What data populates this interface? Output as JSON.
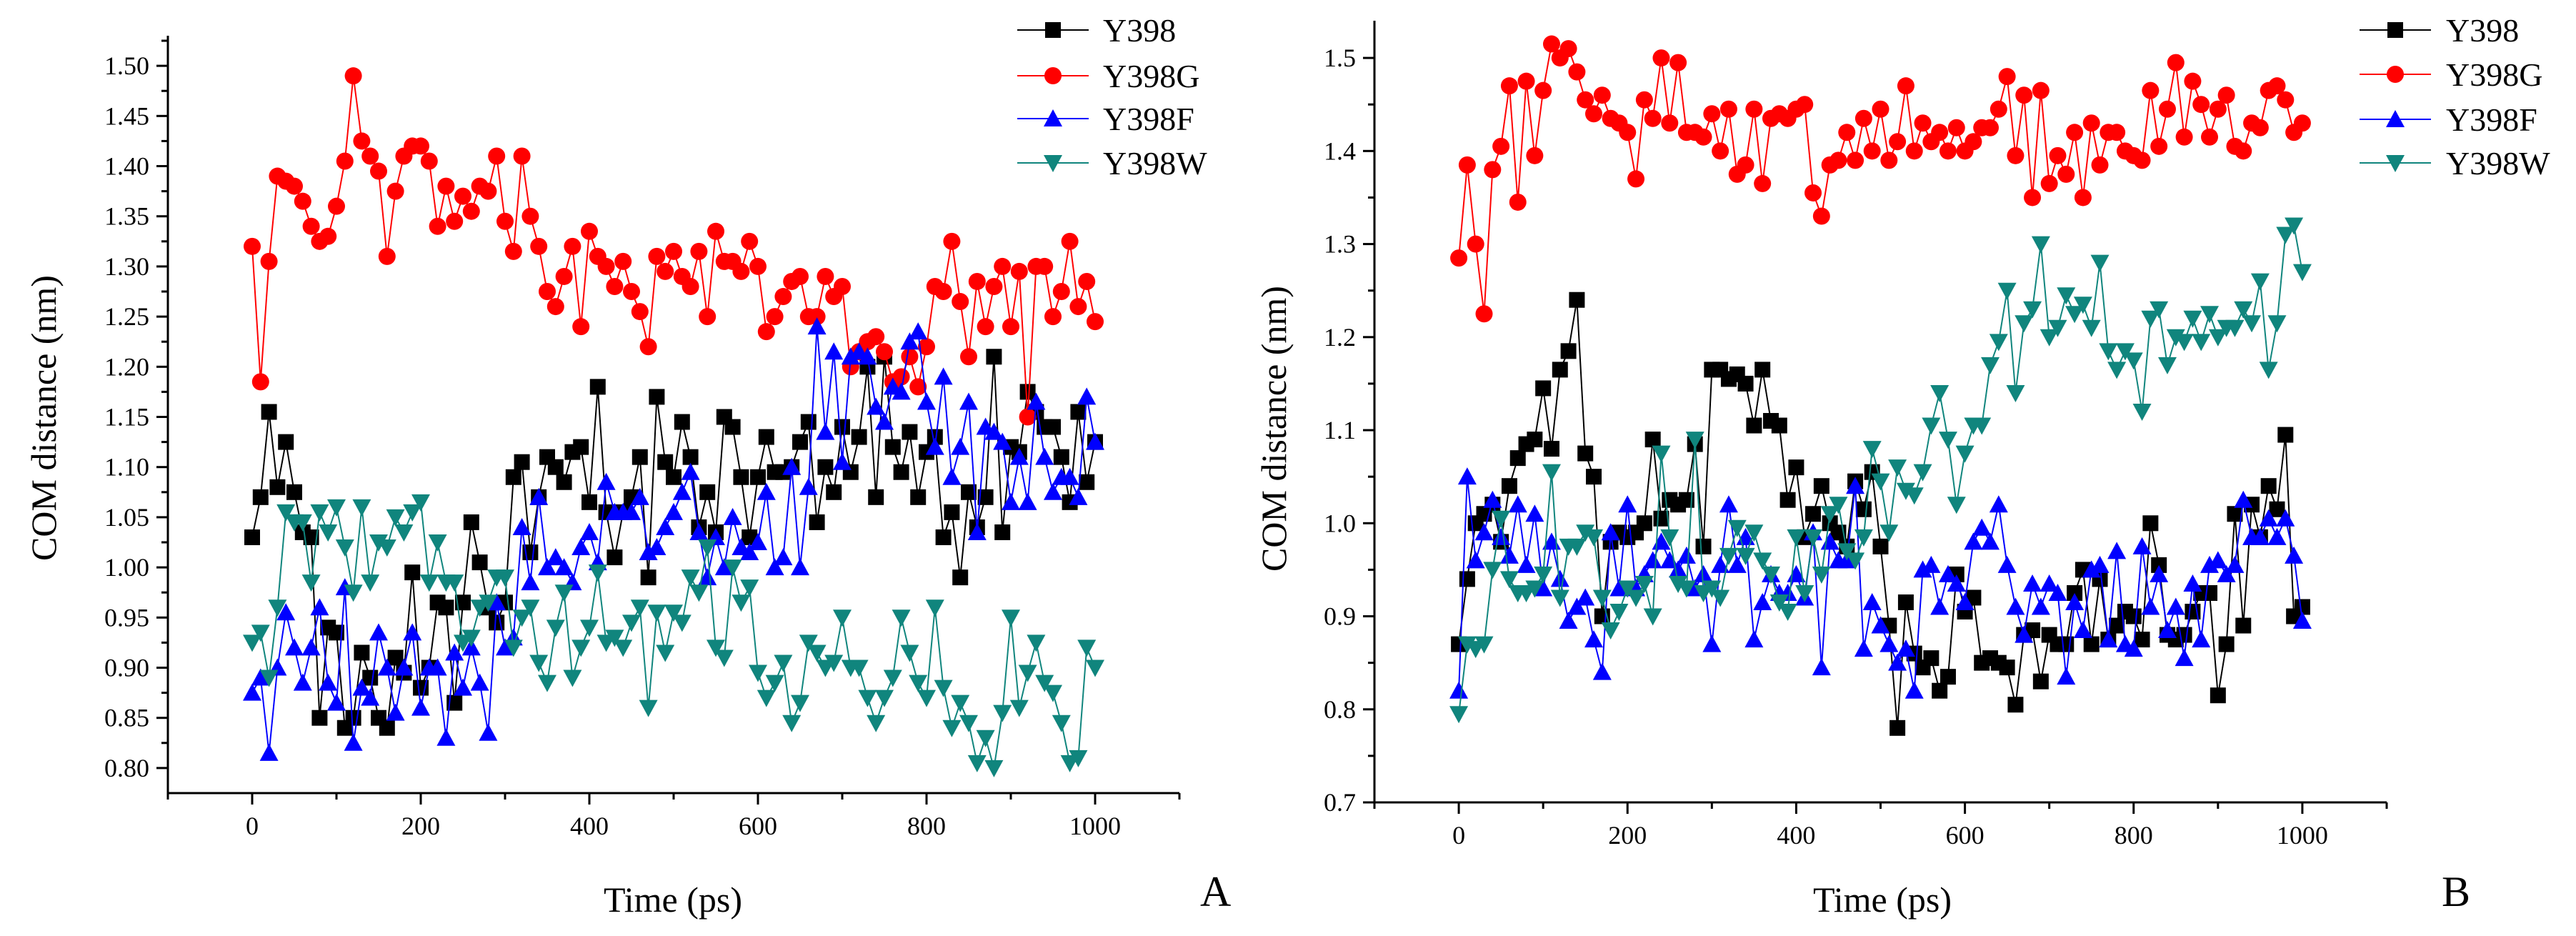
{
  "chart_data": [
    {
      "type": "line",
      "panel_label": "A",
      "xlabel": "Time (ps)",
      "ylabel": "COM distance (nm)",
      "xlim": [
        -100,
        1100
      ],
      "ylim": [
        0.775,
        1.53
      ],
      "xticks": [
        0,
        200,
        400,
        600,
        800,
        1000
      ],
      "yticks": [
        0.8,
        0.85,
        0.9,
        0.95,
        1.0,
        1.05,
        1.1,
        1.15,
        1.2,
        1.25,
        1.3,
        1.35,
        1.4,
        1.45,
        1.5
      ],
      "ytick_decimals": 2,
      "legend_position": "top-right",
      "x_start": 0,
      "x_step": 10,
      "series": [
        {
          "name": "Y398",
          "color": "#000000",
          "marker": "square",
          "values": [
            1.03,
            1.07,
            1.155,
            1.08,
            1.125,
            1.075,
            1.035,
            1.03,
            0.85,
            0.94,
            0.935,
            0.84,
            0.85,
            0.915,
            0.89,
            0.85,
            0.84,
            0.91,
            0.895,
            0.995,
            0.88,
            0.9,
            0.965,
            0.96,
            0.865,
            0.965,
            1.045,
            1.005,
            0.96,
            0.945,
            0.965,
            1.09,
            1.105,
            1.015,
            1.07,
            1.11,
            1.1,
            1.085,
            1.115,
            1.12,
            1.065,
            1.18,
            1.055,
            1.01,
            1.055,
            1.07,
            1.11,
            0.99,
            1.17,
            1.105,
            1.09,
            1.145,
            1.11,
            1.04,
            1.075,
            1.035,
            1.15,
            1.14,
            1.09,
            1.03,
            1.09,
            1.13,
            1.095,
            1.095,
            1.1,
            1.125,
            1.145,
            1.045,
            1.1,
            1.075,
            1.14,
            1.095,
            1.13,
            1.2,
            1.07,
            1.21,
            1.12,
            1.095,
            1.135,
            1.07,
            1.115,
            1.13,
            1.03,
            1.055,
            0.99,
            1.075,
            1.04,
            1.07,
            1.21,
            1.035,
            1.12,
            1.115,
            1.175,
            1.155,
            1.14,
            1.14,
            1.11,
            1.065,
            1.155,
            1.085,
            1.125
          ]
        },
        {
          "name": "Y398G",
          "color": "#ff0000",
          "marker": "circle",
          "values": [
            1.32,
            1.185,
            1.305,
            1.39,
            1.385,
            1.38,
            1.365,
            1.34,
            1.325,
            1.33,
            1.36,
            1.405,
            1.49,
            1.425,
            1.41,
            1.395,
            1.31,
            1.375,
            1.41,
            1.42,
            1.42,
            1.405,
            1.34,
            1.38,
            1.345,
            1.37,
            1.355,
            1.38,
            1.375,
            1.41,
            1.345,
            1.315,
            1.41,
            1.35,
            1.32,
            1.275,
            1.26,
            1.29,
            1.32,
            1.24,
            1.335,
            1.31,
            1.3,
            1.28,
            1.305,
            1.275,
            1.255,
            1.22,
            1.31,
            1.295,
            1.315,
            1.29,
            1.28,
            1.315,
            1.25,
            1.335,
            1.305,
            1.305,
            1.295,
            1.325,
            1.3,
            1.235,
            1.25,
            1.27,
            1.285,
            1.29,
            1.25,
            1.25,
            1.29,
            1.27,
            1.28,
            1.2,
            1.215,
            1.225,
            1.23,
            1.215,
            1.185,
            1.19,
            1.21,
            1.18,
            1.22,
            1.28,
            1.275,
            1.325,
            1.265,
            1.21,
            1.285,
            1.24,
            1.28,
            1.3,
            1.24,
            1.295,
            1.15,
            1.3,
            1.3,
            1.25,
            1.275,
            1.325,
            1.26,
            1.285,
            1.245
          ]
        },
        {
          "name": "Y398F",
          "color": "#0000ff",
          "marker": "triangle-up",
          "values": [
            0.875,
            0.89,
            0.815,
            0.9,
            0.955,
            0.92,
            0.885,
            0.92,
            0.96,
            0.885,
            0.865,
            0.98,
            0.825,
            0.88,
            0.87,
            0.935,
            0.9,
            0.855,
            0.9,
            0.935,
            0.86,
            0.9,
            0.9,
            0.83,
            0.915,
            0.88,
            0.92,
            0.885,
            0.835,
            0.965,
            0.92,
            0.93,
            1.04,
            0.985,
            1.07,
            1.0,
            1.01,
            1.0,
            0.985,
            1.02,
            1.035,
            1.005,
            1.085,
            1.055,
            1.055,
            1.055,
            1.07,
            1.015,
            1.02,
            1.04,
            1.055,
            1.075,
            1.095,
            1.035,
            0.99,
            1.03,
            1.0,
            1.05,
            1.02,
            1.015,
            1.025,
            1.075,
            1.0,
            1.01,
            1.1,
            1.0,
            1.08,
            1.24,
            1.135,
            1.215,
            1.105,
            1.21,
            1.215,
            1.21,
            1.16,
            1.145,
            1.18,
            1.175,
            1.225,
            1.235,
            1.165,
            1.12,
            1.19,
            1.09,
            1.12,
            1.165,
            1.035,
            1.14,
            1.135,
            1.125,
            1.065,
            1.11,
            1.065,
            1.165,
            1.11,
            1.075,
            1.09,
            1.09,
            1.07,
            1.17,
            1.125
          ]
        },
        {
          "name": "Y398W",
          "color": "#10857d",
          "marker": "triangle-down",
          "values": [
            0.925,
            0.935,
            0.89,
            0.96,
            1.055,
            1.045,
            1.045,
            0.985,
            1.055,
            1.035,
            1.06,
            1.02,
            0.975,
            1.06,
            0.985,
            1.025,
            1.02,
            1.05,
            1.035,
            1.055,
            1.065,
            0.985,
            1.025,
            0.985,
            0.985,
            0.925,
            0.93,
            0.96,
            0.965,
            0.99,
            0.99,
            0.92,
            0.95,
            0.96,
            0.905,
            0.885,
            0.94,
            0.975,
            0.89,
            0.92,
            0.94,
            0.995,
            0.925,
            0.93,
            0.92,
            0.945,
            0.96,
            0.86,
            0.955,
            0.915,
            0.955,
            0.945,
            0.99,
            0.975,
            1.02,
            0.92,
            0.91,
            1.0,
            0.965,
            0.98,
            0.895,
            0.87,
            0.885,
            0.905,
            0.845,
            0.865,
            0.925,
            0.915,
            0.9,
            0.905,
            0.95,
            0.9,
            0.9,
            0.87,
            0.845,
            0.87,
            0.89,
            0.95,
            0.915,
            0.885,
            0.87,
            0.96,
            0.88,
            0.84,
            0.865,
            0.845,
            0.805,
            0.83,
            0.8,
            0.855,
            0.95,
            0.86,
            0.895,
            0.925,
            0.885,
            0.875,
            0.845,
            0.805,
            0.81,
            0.92,
            0.9
          ]
        }
      ]
    },
    {
      "type": "line",
      "panel_label": "B",
      "xlabel": "Time (ps)",
      "ylabel": "COM distance (nm)",
      "xlim": [
        -100,
        1100
      ],
      "ylim": [
        0.7,
        1.54
      ],
      "xticks": [
        0,
        200,
        400,
        600,
        800,
        1000
      ],
      "yticks": [
        0.7,
        0.8,
        0.9,
        1.0,
        1.1,
        1.2,
        1.3,
        1.4,
        1.5
      ],
      "ytick_decimals": 1,
      "legend_position": "top-right",
      "x_start": 0,
      "x_step": 10,
      "series": [
        {
          "name": "Y398",
          "color": "#000000",
          "marker": "square",
          "values": [
            0.87,
            0.94,
            1.0,
            1.01,
            1.02,
            0.98,
            1.04,
            1.07,
            1.085,
            1.09,
            1.145,
            1.08,
            1.165,
            1.185,
            1.24,
            1.075,
            1.05,
            0.9,
            0.98,
            0.99,
            0.985,
            0.99,
            1.0,
            1.09,
            1.005,
            1.025,
            1.02,
            1.025,
            1.085,
            0.975,
            1.165,
            1.165,
            1.155,
            1.16,
            1.15,
            1.105,
            1.165,
            1.11,
            1.105,
            1.025,
            1.06,
            0.985,
            1.01,
            1.04,
            1.0,
            0.99,
            0.975,
            1.045,
            1.015,
            1.055,
            0.975,
            0.89,
            0.78,
            0.915,
            0.86,
            0.845,
            0.855,
            0.82,
            0.835,
            0.945,
            0.905,
            0.92,
            0.85,
            0.855,
            0.85,
            0.845,
            0.805,
            0.88,
            0.885,
            0.83,
            0.88,
            0.87,
            0.87,
            0.925,
            0.95,
            0.87,
            0.94,
            0.875,
            0.89,
            0.905,
            0.9,
            0.875,
            1.0,
            0.955,
            0.88,
            0.875,
            0.88,
            0.905,
            0.925,
            0.925,
            0.815,
            0.87,
            1.01,
            0.89,
            1.02,
            0.985,
            1.04,
            1.015,
            1.095,
            0.9,
            0.91
          ]
        },
        {
          "name": "Y398G",
          "color": "#ff0000",
          "marker": "circle",
          "values": [
            1.285,
            1.385,
            1.3,
            1.225,
            1.38,
            1.405,
            1.47,
            1.345,
            1.475,
            1.395,
            1.465,
            1.515,
            1.5,
            1.51,
            1.485,
            1.455,
            1.44,
            1.46,
            1.435,
            1.43,
            1.42,
            1.37,
            1.455,
            1.435,
            1.5,
            1.43,
            1.495,
            1.42,
            1.42,
            1.415,
            1.44,
            1.4,
            1.445,
            1.375,
            1.385,
            1.445,
            1.365,
            1.435,
            1.44,
            1.435,
            1.445,
            1.45,
            1.355,
            1.33,
            1.385,
            1.39,
            1.42,
            1.39,
            1.435,
            1.4,
            1.445,
            1.39,
            1.41,
            1.47,
            1.4,
            1.43,
            1.41,
            1.42,
            1.4,
            1.425,
            1.4,
            1.41,
            1.425,
            1.425,
            1.445,
            1.48,
            1.395,
            1.46,
            1.35,
            1.465,
            1.365,
            1.395,
            1.375,
            1.42,
            1.35,
            1.43,
            1.385,
            1.42,
            1.42,
            1.4,
            1.395,
            1.39,
            1.465,
            1.405,
            1.445,
            1.495,
            1.415,
            1.475,
            1.45,
            1.415,
            1.445,
            1.46,
            1.405,
            1.4,
            1.43,
            1.425,
            1.465,
            1.47,
            1.455,
            1.42,
            1.43
          ]
        },
        {
          "name": "Y398F",
          "color": "#0000ff",
          "marker": "triangle-up",
          "values": [
            0.82,
            1.05,
            0.96,
            0.99,
            1.025,
            0.985,
            0.965,
            1.02,
            0.955,
            1.01,
            0.93,
            0.98,
            0.94,
            0.895,
            0.91,
            0.92,
            0.875,
            0.84,
            0.99,
            0.93,
            1.02,
            0.93,
            0.945,
            0.96,
            0.98,
            0.96,
            0.95,
            0.965,
            0.93,
            0.945,
            0.87,
            0.955,
            1.02,
            0.955,
            0.985,
            0.875,
            0.915,
            0.945,
            0.925,
            0.925,
            0.945,
            0.92,
            0.99,
            0.845,
            0.98,
            0.96,
            0.96,
            1.04,
            0.865,
            0.915,
            0.89,
            0.87,
            0.85,
            0.865,
            0.82,
            0.95,
            0.955,
            0.91,
            0.945,
            0.935,
            0.915,
            0.98,
            0.995,
            0.98,
            1.02,
            0.955,
            0.91,
            0.88,
            0.935,
            0.91,
            0.935,
            0.925,
            0.835,
            0.915,
            0.885,
            0.95,
            0.955,
            0.875,
            0.97,
            0.87,
            0.865,
            0.975,
            0.91,
            0.945,
            0.885,
            0.91,
            0.855,
            0.935,
            0.875,
            0.955,
            0.96,
            0.945,
            0.955,
            1.025,
            0.985,
            0.985,
            1.005,
            0.985,
            1.005,
            0.965,
            0.895
          ]
        },
        {
          "name": "Y398W",
          "color": "#10857d",
          "marker": "triangle-down",
          "values": [
            0.795,
            0.87,
            0.865,
            0.87,
            0.95,
            1.005,
            0.94,
            0.925,
            0.925,
            0.93,
            0.945,
            1.055,
            0.92,
            0.975,
            0.975,
            0.99,
            0.985,
            0.92,
            0.885,
            0.905,
            0.93,
            0.92,
            0.935,
            0.9,
            1.075,
            0.985,
            0.935,
            0.93,
            1.09,
            0.925,
            0.93,
            0.92,
            0.965,
            0.995,
            0.965,
            0.99,
            0.96,
            0.945,
            0.915,
            0.905,
            0.985,
            0.925,
            0.985,
            0.945,
            1.01,
            1.02,
            0.97,
            0.96,
            0.985,
            1.08,
            1.045,
            0.99,
            1.06,
            1.035,
            1.03,
            1.055,
            1.105,
            1.14,
            1.09,
            1.02,
            1.075,
            1.105,
            1.105,
            1.17,
            1.195,
            1.25,
            1.14,
            1.215,
            1.23,
            1.3,
            1.2,
            1.21,
            1.245,
            1.225,
            1.235,
            1.21,
            1.28,
            1.185,
            1.165,
            1.185,
            1.175,
            1.12,
            1.22,
            1.23,
            1.17,
            1.2,
            1.195,
            1.22,
            1.195,
            1.225,
            1.2,
            1.21,
            1.21,
            1.23,
            1.215,
            1.26,
            1.165,
            1.215,
            1.31,
            1.32,
            1.27
          ]
        }
      ]
    }
  ]
}
